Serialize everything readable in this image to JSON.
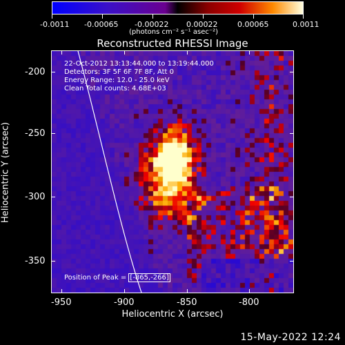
{
  "colorbar": {
    "tick_labels": [
      "-0.0011",
      "-0.00065",
      "-0.00022",
      "0.00022",
      "0.00065",
      "0.0011"
    ],
    "units": "(photons cm⁻² s⁻¹ asec⁻²)"
  },
  "plot": {
    "title": "Reconstructed RHESSI Image",
    "xlabel": "Heliocentric X (arcsec)",
    "ylabel": "Heliocentric Y (arcsec)",
    "x_ticks": [
      "-950",
      "-900",
      "-850",
      "-800"
    ],
    "y_ticks": [
      "-200",
      "-250",
      "-300",
      "-350"
    ],
    "info_lines": [
      "22-Oct-2012 13:13:44.000 to 13:19:44.000",
      "Detectors: 3F 5F 6F 7F 8F, Att 0",
      "Energy Range: 12.0 - 25.0 keV",
      "Clean     Total counts: 4.68E+03"
    ],
    "peak_label": "Position of Peak = ",
    "peak_value": "[-865,-266]"
  },
  "footer": {
    "date": "15-May-2022 12:24"
  },
  "chart_data": {
    "type": "heatmap",
    "title": "Reconstructed RHESSI Image",
    "xlabel": "Heliocentric X (arcsec)",
    "ylabel": "Heliocentric Y (arcsec)",
    "xlim": [
      -960,
      -825
    ],
    "ylim": [
      -375,
      -185
    ],
    "colorbar_range": [
      -0.0011,
      0.0011
    ],
    "peak": [
      -865,
      -266
    ]
  }
}
